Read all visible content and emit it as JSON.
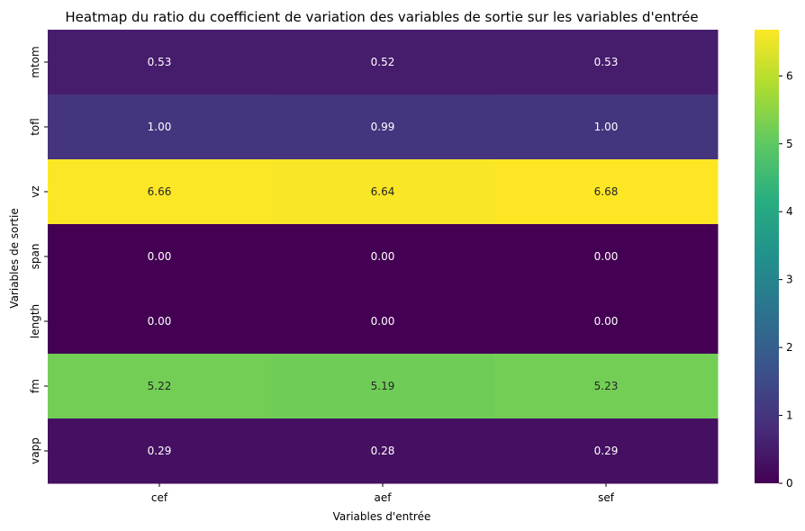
{
  "chart_data": {
    "type": "heatmap",
    "title": "Heatmap du ratio du coefficient de variation des variables de sortie sur les variables d'entrée",
    "xlabel": "Variables d'entrée",
    "ylabel": "Variables de sortie",
    "x_categories": [
      "cef",
      "aef",
      "sef"
    ],
    "y_categories": [
      "mtom",
      "tofl",
      "vz",
      "span",
      "length",
      "fm",
      "vapp"
    ],
    "values": [
      [
        0.53,
        0.52,
        0.53
      ],
      [
        1.0,
        0.99,
        1.0
      ],
      [
        6.66,
        6.64,
        6.68
      ],
      [
        0.0,
        0.0,
        0.0
      ],
      [
        0.0,
        0.0,
        0.0
      ],
      [
        5.22,
        5.19,
        5.23
      ],
      [
        0.29,
        0.28,
        0.29
      ]
    ],
    "value_labels": [
      [
        "0.53",
        "0.52",
        "0.53"
      ],
      [
        "1.00",
        "0.99",
        "1.00"
      ],
      [
        "6.66",
        "6.64",
        "6.68"
      ],
      [
        "0.00",
        "0.00",
        "0.00"
      ],
      [
        "0.00",
        "0.00",
        "0.00"
      ],
      [
        "5.22",
        "5.19",
        "5.23"
      ],
      [
        "0.29",
        "0.28",
        "0.29"
      ]
    ],
    "colormap": "viridis",
    "colorbar": {
      "range": [
        0,
        6.68
      ],
      "ticks": [
        0,
        1,
        2,
        3,
        4,
        5,
        6
      ],
      "tick_labels": [
        "0",
        "1",
        "2",
        "3",
        "4",
        "5",
        "6"
      ]
    },
    "grid": false,
    "legend": "colorbar-right"
  }
}
